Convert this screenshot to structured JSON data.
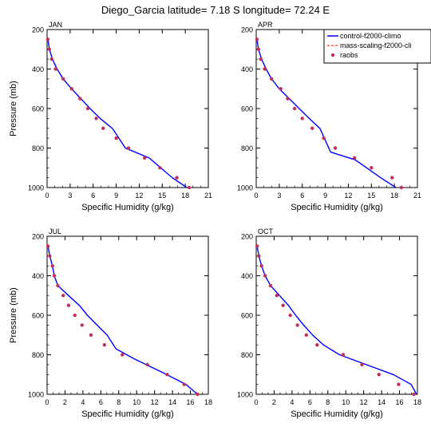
{
  "figure": {
    "title": "Diego_Garcia  latitude= 7.18 S longitude= 72.24 E"
  },
  "colors": {
    "control": "#0000ff",
    "mass_scaling": "#ff0000",
    "raobs": "#c0305a",
    "frame": "#000000"
  },
  "legend": {
    "placement": "top-right of APR panel",
    "entries": [
      {
        "label": "control-f2000-climo",
        "style": "solid-line",
        "color": "#0000ff"
      },
      {
        "label": "mass-scaling-f2000-cli",
        "style": "dashed-line",
        "color": "#ff0000"
      },
      {
        "label": "raobs",
        "style": "dot",
        "color": "#c0305a"
      }
    ]
  },
  "chart_data": [
    {
      "type": "line",
      "panel_label": "JAN",
      "xlabel": "Specific Humidity (g/kg)",
      "ylabel": "Pressure (mb)",
      "xlim": [
        0,
        21
      ],
      "ylim": [
        1000,
        200
      ],
      "y_inverted": true,
      "xticks": [
        0,
        3,
        6,
        9,
        12,
        15,
        18,
        21
      ],
      "yticks": [
        200,
        400,
        600,
        800,
        1000
      ],
      "series": [
        {
          "name": "control-f2000-climo",
          "style": "line",
          "x": [
            0.1,
            0.3,
            0.7,
            1.3,
            2.1,
            3.2,
            4.4,
            5.6,
            6.9,
            8.5,
            10.2,
            13.3,
            16.3,
            18.2
          ],
          "y": [
            250,
            300,
            350,
            400,
            450,
            500,
            550,
            600,
            650,
            700,
            800,
            850,
            950,
            1000
          ]
        },
        {
          "name": "raobs",
          "style": "markers",
          "x": [
            0.1,
            0.3,
            0.6,
            1.1,
            2.1,
            3.2,
            4.3,
            5.3,
            6.4,
            7.3,
            9.0,
            10.6,
            12.7,
            14.7,
            16.9,
            18.5
          ],
          "y": [
            250,
            300,
            350,
            400,
            450,
            500,
            550,
            600,
            650,
            700,
            750,
            800,
            850,
            900,
            950,
            1000
          ]
        }
      ]
    },
    {
      "type": "line",
      "panel_label": "APR",
      "xlabel": "Specific Humidity (g/kg)",
      "ylabel": "",
      "xlim": [
        0,
        21
      ],
      "ylim": [
        1000,
        200
      ],
      "y_inverted": true,
      "xticks": [
        0,
        3,
        6,
        9,
        12,
        15,
        18,
        21
      ],
      "yticks": [
        200,
        400,
        600,
        800,
        1000
      ],
      "series": [
        {
          "name": "control-f2000-climo",
          "style": "line",
          "x": [
            0.1,
            0.3,
            0.7,
            1.3,
            2.0,
            3.0,
            4.3,
            5.6,
            6.9,
            8.3,
            9.7,
            12.9,
            16.2,
            18.2
          ],
          "y": [
            250,
            300,
            350,
            400,
            450,
            500,
            550,
            600,
            650,
            700,
            820,
            860,
            950,
            1000
          ]
        },
        {
          "name": "raobs",
          "style": "markers",
          "x": [
            0.1,
            0.3,
            0.6,
            1.1,
            2.0,
            3.2,
            4.1,
            5.0,
            6.0,
            7.3,
            8.8,
            10.3,
            12.8,
            15.0,
            17.7,
            18.9
          ],
          "y": [
            250,
            300,
            350,
            400,
            450,
            500,
            550,
            600,
            650,
            700,
            750,
            800,
            850,
            900,
            950,
            1000
          ]
        }
      ]
    },
    {
      "type": "line",
      "panel_label": "JUL",
      "xlabel": "Specific Humidity (g/kg)",
      "ylabel": "Pressure (mb)",
      "xlim": [
        0,
        18
      ],
      "ylim": [
        1000,
        200
      ],
      "y_inverted": true,
      "xticks": [
        0,
        2,
        4,
        6,
        8,
        10,
        12,
        14,
        16,
        18
      ],
      "yticks": [
        200,
        400,
        600,
        800,
        1000
      ],
      "series": [
        {
          "name": "control-f2000-climo",
          "style": "line",
          "x": [
            0.1,
            0.3,
            0.6,
            0.8,
            1.2,
            2.4,
            3.6,
            4.5,
            5.6,
            6.7,
            7.7,
            9.7,
            12.9,
            15.5,
            16.8
          ],
          "y": [
            250,
            300,
            350,
            400,
            450,
            500,
            550,
            600,
            650,
            700,
            770,
            820,
            890,
            950,
            1000
          ]
        },
        {
          "name": "raobs",
          "style": "markers",
          "x": [
            0.1,
            0.3,
            0.6,
            0.8,
            1.2,
            1.8,
            2.4,
            3.1,
            3.9,
            4.9,
            6.4,
            8.4,
            11.2,
            13.4,
            15.3,
            16.8
          ],
          "y": [
            250,
            300,
            350,
            400,
            450,
            500,
            550,
            600,
            650,
            700,
            750,
            800,
            850,
            900,
            950,
            1000
          ]
        }
      ]
    },
    {
      "type": "line",
      "panel_label": "OCT",
      "xlabel": "Specific Humidity (g/kg)",
      "ylabel": "",
      "xlim": [
        0,
        18
      ],
      "ylim": [
        1000,
        200
      ],
      "y_inverted": true,
      "xticks": [
        0,
        2,
        4,
        6,
        8,
        10,
        12,
        14,
        16,
        18
      ],
      "yticks": [
        200,
        400,
        600,
        800,
        1000
      ],
      "series": [
        {
          "name": "control-f2000-climo",
          "style": "line",
          "x": [
            0.1,
            0.3,
            0.6,
            1.0,
            1.6,
            2.6,
            3.6,
            4.4,
            5.3,
            6.3,
            7.5,
            9.3,
            12.3,
            15.3,
            17.3,
            17.9
          ],
          "y": [
            250,
            300,
            350,
            400,
            450,
            500,
            550,
            600,
            650,
            700,
            750,
            800,
            850,
            900,
            950,
            1000
          ]
        },
        {
          "name": "raobs",
          "style": "markers",
          "x": [
            0.1,
            0.3,
            0.6,
            1.0,
            1.6,
            2.3,
            3.0,
            3.8,
            4.6,
            5.6,
            6.8,
            9.7,
            11.8,
            13.7,
            15.9,
            17.6
          ],
          "y": [
            250,
            300,
            350,
            400,
            450,
            500,
            550,
            600,
            650,
            700,
            750,
            800,
            850,
            900,
            950,
            1000
          ]
        }
      ]
    }
  ]
}
